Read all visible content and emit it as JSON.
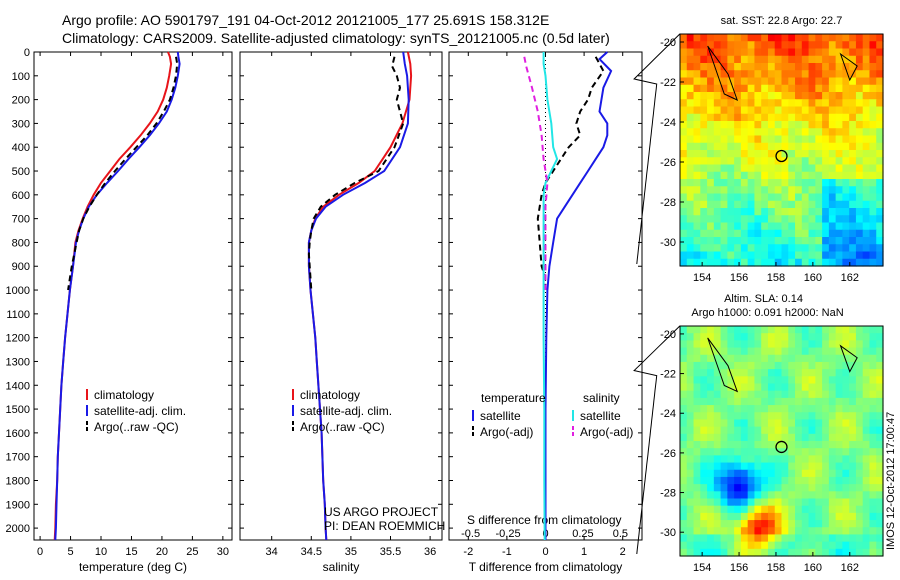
{
  "title": {
    "line1": "Argo profile: AO 5901797_191 04-Oct-2012 20121005_177 25.691S 158.312E",
    "line2": "Climatology: CARS2009. Satellite-adjusted climatology: synTS_20121005.nc (0.5d later)"
  },
  "colors": {
    "clim": "#e8141a",
    "sat": "#1a1ae6",
    "argo": "#000000",
    "sdiff": "#22e6e6",
    "argoS": "#e020e0"
  },
  "depth_axis": {
    "ticks": [
      0,
      100,
      200,
      300,
      400,
      500,
      600,
      700,
      800,
      900,
      1000,
      1100,
      1200,
      1300,
      1400,
      1500,
      1600,
      1700,
      1800,
      1900,
      2000
    ],
    "ylim": [
      0,
      2050
    ]
  },
  "chart_data": [
    {
      "type": "line",
      "xlabel": "temperature (deg C)",
      "xlim": [
        -1,
        31.5
      ],
      "xticks": [
        0,
        5,
        10,
        15,
        20,
        25,
        30
      ],
      "legend": {
        "placement": "bottom-center",
        "entries": [
          "climatology",
          "satellite-adj. clim.",
          "Argo(..raw -QC)"
        ]
      },
      "series": [
        {
          "key": "clim",
          "style": "solid",
          "points": [
            [
              21,
              0
            ],
            [
              21.3,
              20
            ],
            [
              21.5,
              50
            ],
            [
              21.2,
              100
            ],
            [
              20.8,
              150
            ],
            [
              20.2,
              200
            ],
            [
              19.3,
              250
            ],
            [
              18,
              300
            ],
            [
              16.5,
              350
            ],
            [
              14.8,
              400
            ],
            [
              13,
              450
            ],
            [
              11.5,
              500
            ],
            [
              10,
              550
            ],
            [
              8.8,
              600
            ],
            [
              7.8,
              650
            ],
            [
              7,
              700
            ],
            [
              6.3,
              750
            ],
            [
              5.8,
              800
            ],
            [
              5.4,
              900
            ],
            [
              4.9,
              1000
            ],
            [
              4.5,
              1100
            ],
            [
              4.1,
              1200
            ],
            [
              3.8,
              1300
            ],
            [
              3.5,
              1400
            ],
            [
              3.3,
              1500
            ],
            [
              3.1,
              1600
            ],
            [
              2.9,
              1700
            ],
            [
              2.8,
              1800
            ],
            [
              2.6,
              1900
            ],
            [
              2.5,
              2000
            ],
            [
              2.4,
              2050
            ]
          ]
        },
        {
          "key": "sat",
          "style": "solid",
          "points": [
            [
              22.6,
              0
            ],
            [
              22.7,
              20
            ],
            [
              22.9,
              50
            ],
            [
              22.6,
              100
            ],
            [
              22.2,
              150
            ],
            [
              21.6,
              200
            ],
            [
              20.8,
              250
            ],
            [
              19.5,
              300
            ],
            [
              18,
              350
            ],
            [
              16.3,
              400
            ],
            [
              14.5,
              450
            ],
            [
              12.8,
              500
            ],
            [
              11,
              550
            ],
            [
              9.3,
              600
            ],
            [
              8,
              650
            ],
            [
              7.1,
              700
            ],
            [
              6.4,
              750
            ],
            [
              5.9,
              800
            ],
            [
              5.4,
              900
            ],
            [
              4.9,
              1000
            ],
            [
              4.5,
              1100
            ],
            [
              4.1,
              1200
            ],
            [
              3.8,
              1300
            ],
            [
              3.5,
              1400
            ],
            [
              3.3,
              1500
            ],
            [
              3.1,
              1600
            ],
            [
              2.9,
              1700
            ],
            [
              2.8,
              1800
            ],
            [
              2.7,
              1900
            ],
            [
              2.6,
              2000
            ],
            [
              2.5,
              2050
            ]
          ]
        },
        {
          "key": "argo",
          "style": "dashed",
          "points": [
            [
              22.3,
              20
            ],
            [
              22.5,
              50
            ],
            [
              22.3,
              100
            ],
            [
              21.9,
              150
            ],
            [
              21.3,
              200
            ],
            [
              20.3,
              250
            ],
            [
              19.1,
              300
            ],
            [
              17.6,
              350
            ],
            [
              15.8,
              400
            ],
            [
              14,
              450
            ],
            [
              12.3,
              500
            ],
            [
              10.7,
              550
            ],
            [
              9.3,
              600
            ],
            [
              8.1,
              650
            ],
            [
              7.1,
              700
            ],
            [
              6.4,
              750
            ],
            [
              6,
              800
            ],
            [
              5.6,
              850
            ],
            [
              5.2,
              900
            ],
            [
              4.9,
              950
            ],
            [
              4.6,
              1000
            ]
          ]
        }
      ]
    },
    {
      "type": "line",
      "xlabel": "salinity",
      "xlim": [
        33.6,
        36.15
      ],
      "xticks": [
        34,
        34.5,
        35,
        35.5,
        36
      ],
      "legend": {
        "placement": "bottom-center",
        "entries": [
          "climatology",
          "satellite-adj. clim.",
          "Argo(..raw -QC)"
        ]
      },
      "annotation": [
        "US ARGO PROJECT",
        "PI: DEAN ROEMMICH"
      ],
      "series": [
        {
          "key": "clim",
          "style": "solid",
          "points": [
            [
              35.72,
              0
            ],
            [
              35.75,
              50
            ],
            [
              35.76,
              100
            ],
            [
              35.74,
              200
            ],
            [
              35.65,
              300
            ],
            [
              35.5,
              400
            ],
            [
              35.3,
              500
            ],
            [
              35.1,
              550
            ],
            [
              34.85,
              600
            ],
            [
              34.65,
              650
            ],
            [
              34.55,
              700
            ],
            [
              34.5,
              750
            ],
            [
              34.47,
              800
            ],
            [
              34.47,
              900
            ],
            [
              34.49,
              1000
            ],
            [
              34.52,
              1100
            ],
            [
              34.55,
              1200
            ],
            [
              34.57,
              1300
            ],
            [
              34.59,
              1400
            ],
            [
              34.61,
              1500
            ],
            [
              34.63,
              1600
            ],
            [
              34.64,
              1700
            ],
            [
              34.65,
              1800
            ],
            [
              34.67,
              1900
            ],
            [
              34.68,
              2000
            ],
            [
              34.69,
              2050
            ]
          ]
        },
        {
          "key": "sat",
          "style": "solid",
          "points": [
            [
              35.66,
              0
            ],
            [
              35.68,
              50
            ],
            [
              35.71,
              100
            ],
            [
              35.73,
              200
            ],
            [
              35.72,
              300
            ],
            [
              35.62,
              400
            ],
            [
              35.42,
              500
            ],
            [
              35.18,
              550
            ],
            [
              34.9,
              600
            ],
            [
              34.68,
              650
            ],
            [
              34.56,
              700
            ],
            [
              34.5,
              750
            ],
            [
              34.47,
              800
            ],
            [
              34.47,
              900
            ],
            [
              34.49,
              1000
            ],
            [
              34.52,
              1100
            ],
            [
              34.55,
              1200
            ],
            [
              34.57,
              1300
            ],
            [
              34.59,
              1400
            ],
            [
              34.61,
              1500
            ],
            [
              34.63,
              1600
            ],
            [
              34.64,
              1700
            ],
            [
              34.65,
              1800
            ],
            [
              34.67,
              1900
            ],
            [
              34.68,
              2000
            ],
            [
              34.69,
              2050
            ]
          ]
        },
        {
          "key": "argo",
          "style": "dashed",
          "points": [
            [
              35.55,
              20
            ],
            [
              35.52,
              60
            ],
            [
              35.58,
              100
            ],
            [
              35.62,
              150
            ],
            [
              35.58,
              200
            ],
            [
              35.62,
              250
            ],
            [
              35.66,
              300
            ],
            [
              35.55,
              400
            ],
            [
              35.35,
              500
            ],
            [
              35.05,
              550
            ],
            [
              34.8,
              600
            ],
            [
              34.62,
              650
            ],
            [
              34.53,
              700
            ],
            [
              34.5,
              750
            ],
            [
              34.48,
              800
            ],
            [
              34.47,
              850
            ],
            [
              34.48,
              900
            ],
            [
              34.49,
              950
            ],
            [
              34.5,
              1000
            ]
          ]
        }
      ]
    },
    {
      "type": "line",
      "xlabel": "T difference from climatology",
      "top_xlabel": "S difference from climatology",
      "xlim": [
        -2.5,
        2.5
      ],
      "xticks": [
        -2,
        -1,
        0,
        1,
        2
      ],
      "top_xticks": [
        "-0.5",
        "-0.25",
        "0",
        "0.25",
        "0.5"
      ],
      "legend": {
        "placement": "bottom",
        "temperature_header": "temperature",
        "salinity_header": "salinity",
        "entries": [
          "satellite",
          "Argo(-adj)",
          "satellite",
          "Argo(-adj)"
        ]
      },
      "series": [
        {
          "key": "sat",
          "style": "solid",
          "points": [
            [
              1.6,
              0
            ],
            [
              1.4,
              30
            ],
            [
              1.7,
              80
            ],
            [
              1.5,
              150
            ],
            [
              1.4,
              250
            ],
            [
              1.6,
              300
            ],
            [
              1.6,
              350
            ],
            [
              1.5,
              400
            ],
            [
              1.3,
              450
            ],
            [
              1.1,
              500
            ],
            [
              0.9,
              550
            ],
            [
              0.7,
              600
            ],
            [
              0.5,
              650
            ],
            [
              0.3,
              700
            ],
            [
              0.2,
              800
            ],
            [
              0.1,
              900
            ],
            [
              0.05,
              1000
            ],
            [
              0.02,
              1200
            ],
            [
              0,
              1500
            ],
            [
              0,
              1800
            ],
            [
              0,
              2050
            ]
          ]
        },
        {
          "key": "argo",
          "style": "dashed",
          "points": [
            [
              1.3,
              20
            ],
            [
              1.5,
              80
            ],
            [
              1.2,
              150
            ],
            [
              1.1,
              200
            ],
            [
              0.9,
              250
            ],
            [
              0.8,
              300
            ],
            [
              0.9,
              350
            ],
            [
              0.6,
              400
            ],
            [
              0.4,
              450
            ],
            [
              0.2,
              500
            ],
            [
              0,
              550
            ],
            [
              -0.1,
              600
            ],
            [
              -0.2,
              700
            ],
            [
              -0.15,
              800
            ],
            [
              -0.1,
              900
            ],
            [
              0,
              950
            ],
            [
              0,
              1000
            ]
          ]
        },
        {
          "key": "sdiff",
          "style": "solid",
          "points": [
            [
              -0.05,
              0
            ],
            [
              -0.05,
              50
            ],
            [
              0,
              100
            ],
            [
              0.05,
              200
            ],
            [
              0.15,
              300
            ],
            [
              0.2,
              400
            ],
            [
              0.3,
              450
            ],
            [
              0.15,
              500
            ],
            [
              0,
              550
            ],
            [
              -0.05,
              600
            ],
            [
              -0.05,
              700
            ],
            [
              -0.05,
              800
            ],
            [
              -0.05,
              1000
            ],
            [
              -0.05,
              1200
            ],
            [
              -0.03,
              1500
            ],
            [
              -0.03,
              1800
            ],
            [
              -0.02,
              2050
            ]
          ]
        },
        {
          "key": "argoS",
          "style": "dashed",
          "points": [
            [
              -0.55,
              20
            ],
            [
              -0.5,
              60
            ],
            [
              -0.35,
              150
            ],
            [
              -0.2,
              250
            ],
            [
              -0.1,
              350
            ],
            [
              -0.05,
              450
            ],
            [
              0,
              500
            ],
            [
              0.05,
              550
            ],
            [
              0,
              650
            ],
            [
              0,
              800
            ],
            [
              0,
              1000
            ]
          ]
        }
      ]
    },
    {
      "type": "heatmap",
      "title": "sat. SST: 22.8  Argo: 22.7",
      "xlim": [
        152.8,
        163.8
      ],
      "ylim": [
        -31.2,
        -19.6
      ],
      "xticks": [
        154,
        156,
        158,
        160,
        162
      ],
      "yticks": [
        -20,
        -22,
        -24,
        -26,
        -28,
        -30
      ],
      "marker": {
        "lon": 158.3,
        "lat": -25.7
      },
      "colormap": "jet",
      "gradient": "warm north, cool south"
    },
    {
      "type": "heatmap",
      "title_line1": "Altim. SLA: 0.14",
      "title_line2": "Argo h1000: 0.091 h2000: NaN",
      "xlim": [
        152.8,
        163.8
      ],
      "ylim": [
        -31.2,
        -19.6
      ],
      "xticks": [
        154,
        156,
        158,
        160,
        162
      ],
      "yticks": [
        -20,
        -22,
        -24,
        -26,
        -28,
        -30
      ],
      "marker": {
        "lon": 158.3,
        "lat": -25.7
      },
      "colormap": "jet",
      "features": [
        {
          "type": "low",
          "lon": 156.0,
          "lat": -27.6,
          "strength": -1.0
        },
        {
          "type": "high",
          "lon": 157.0,
          "lat": -29.8,
          "strength": 0.85
        }
      ]
    }
  ],
  "side_text": "IMOS 12-Oct-2012 17:00:47"
}
